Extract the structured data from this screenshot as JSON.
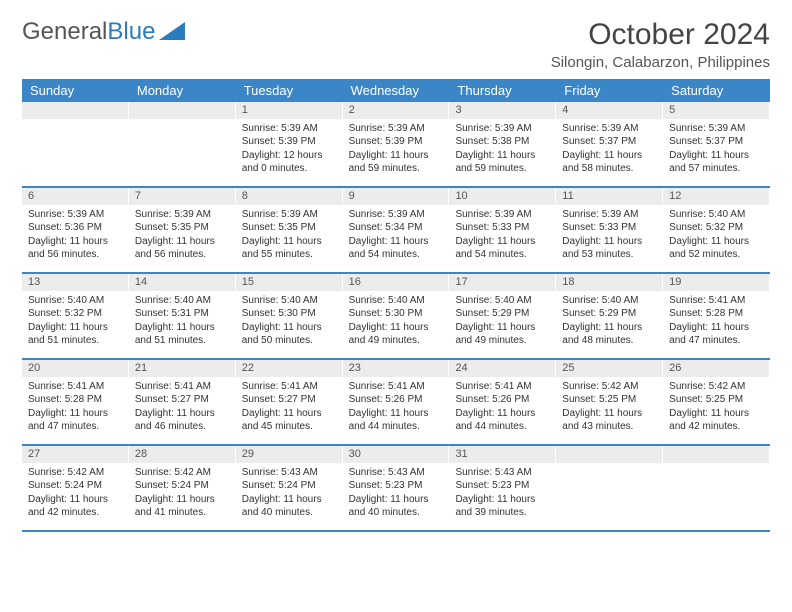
{
  "brand": {
    "a": "General",
    "b": "Blue"
  },
  "title": "October 2024",
  "subtitle": "Silongin, Calabarzon, Philippines",
  "colors": {
    "header_bg": "#3b86c6",
    "band_bg": "#ececec",
    "rule": "#3b86c6",
    "text": "#333333",
    "brand_blue": "#2b7bbf"
  },
  "day_names": [
    "Sunday",
    "Monday",
    "Tuesday",
    "Wednesday",
    "Thursday",
    "Friday",
    "Saturday"
  ],
  "weeks": [
    [
      null,
      null,
      {
        "n": "1",
        "sr": "Sunrise: 5:39 AM",
        "ss": "Sunset: 5:39 PM",
        "dl": "Daylight: 12 hours and 0 minutes."
      },
      {
        "n": "2",
        "sr": "Sunrise: 5:39 AM",
        "ss": "Sunset: 5:39 PM",
        "dl": "Daylight: 11 hours and 59 minutes."
      },
      {
        "n": "3",
        "sr": "Sunrise: 5:39 AM",
        "ss": "Sunset: 5:38 PM",
        "dl": "Daylight: 11 hours and 59 minutes."
      },
      {
        "n": "4",
        "sr": "Sunrise: 5:39 AM",
        "ss": "Sunset: 5:37 PM",
        "dl": "Daylight: 11 hours and 58 minutes."
      },
      {
        "n": "5",
        "sr": "Sunrise: 5:39 AM",
        "ss": "Sunset: 5:37 PM",
        "dl": "Daylight: 11 hours and 57 minutes."
      }
    ],
    [
      {
        "n": "6",
        "sr": "Sunrise: 5:39 AM",
        "ss": "Sunset: 5:36 PM",
        "dl": "Daylight: 11 hours and 56 minutes."
      },
      {
        "n": "7",
        "sr": "Sunrise: 5:39 AM",
        "ss": "Sunset: 5:35 PM",
        "dl": "Daylight: 11 hours and 56 minutes."
      },
      {
        "n": "8",
        "sr": "Sunrise: 5:39 AM",
        "ss": "Sunset: 5:35 PM",
        "dl": "Daylight: 11 hours and 55 minutes."
      },
      {
        "n": "9",
        "sr": "Sunrise: 5:39 AM",
        "ss": "Sunset: 5:34 PM",
        "dl": "Daylight: 11 hours and 54 minutes."
      },
      {
        "n": "10",
        "sr": "Sunrise: 5:39 AM",
        "ss": "Sunset: 5:33 PM",
        "dl": "Daylight: 11 hours and 54 minutes."
      },
      {
        "n": "11",
        "sr": "Sunrise: 5:39 AM",
        "ss": "Sunset: 5:33 PM",
        "dl": "Daylight: 11 hours and 53 minutes."
      },
      {
        "n": "12",
        "sr": "Sunrise: 5:40 AM",
        "ss": "Sunset: 5:32 PM",
        "dl": "Daylight: 11 hours and 52 minutes."
      }
    ],
    [
      {
        "n": "13",
        "sr": "Sunrise: 5:40 AM",
        "ss": "Sunset: 5:32 PM",
        "dl": "Daylight: 11 hours and 51 minutes."
      },
      {
        "n": "14",
        "sr": "Sunrise: 5:40 AM",
        "ss": "Sunset: 5:31 PM",
        "dl": "Daylight: 11 hours and 51 minutes."
      },
      {
        "n": "15",
        "sr": "Sunrise: 5:40 AM",
        "ss": "Sunset: 5:30 PM",
        "dl": "Daylight: 11 hours and 50 minutes."
      },
      {
        "n": "16",
        "sr": "Sunrise: 5:40 AM",
        "ss": "Sunset: 5:30 PM",
        "dl": "Daylight: 11 hours and 49 minutes."
      },
      {
        "n": "17",
        "sr": "Sunrise: 5:40 AM",
        "ss": "Sunset: 5:29 PM",
        "dl": "Daylight: 11 hours and 49 minutes."
      },
      {
        "n": "18",
        "sr": "Sunrise: 5:40 AM",
        "ss": "Sunset: 5:29 PM",
        "dl": "Daylight: 11 hours and 48 minutes."
      },
      {
        "n": "19",
        "sr": "Sunrise: 5:41 AM",
        "ss": "Sunset: 5:28 PM",
        "dl": "Daylight: 11 hours and 47 minutes."
      }
    ],
    [
      {
        "n": "20",
        "sr": "Sunrise: 5:41 AM",
        "ss": "Sunset: 5:28 PM",
        "dl": "Daylight: 11 hours and 47 minutes."
      },
      {
        "n": "21",
        "sr": "Sunrise: 5:41 AM",
        "ss": "Sunset: 5:27 PM",
        "dl": "Daylight: 11 hours and 46 minutes."
      },
      {
        "n": "22",
        "sr": "Sunrise: 5:41 AM",
        "ss": "Sunset: 5:27 PM",
        "dl": "Daylight: 11 hours and 45 minutes."
      },
      {
        "n": "23",
        "sr": "Sunrise: 5:41 AM",
        "ss": "Sunset: 5:26 PM",
        "dl": "Daylight: 11 hours and 44 minutes."
      },
      {
        "n": "24",
        "sr": "Sunrise: 5:41 AM",
        "ss": "Sunset: 5:26 PM",
        "dl": "Daylight: 11 hours and 44 minutes."
      },
      {
        "n": "25",
        "sr": "Sunrise: 5:42 AM",
        "ss": "Sunset: 5:25 PM",
        "dl": "Daylight: 11 hours and 43 minutes."
      },
      {
        "n": "26",
        "sr": "Sunrise: 5:42 AM",
        "ss": "Sunset: 5:25 PM",
        "dl": "Daylight: 11 hours and 42 minutes."
      }
    ],
    [
      {
        "n": "27",
        "sr": "Sunrise: 5:42 AM",
        "ss": "Sunset: 5:24 PM",
        "dl": "Daylight: 11 hours and 42 minutes."
      },
      {
        "n": "28",
        "sr": "Sunrise: 5:42 AM",
        "ss": "Sunset: 5:24 PM",
        "dl": "Daylight: 11 hours and 41 minutes."
      },
      {
        "n": "29",
        "sr": "Sunrise: 5:43 AM",
        "ss": "Sunset: 5:24 PM",
        "dl": "Daylight: 11 hours and 40 minutes."
      },
      {
        "n": "30",
        "sr": "Sunrise: 5:43 AM",
        "ss": "Sunset: 5:23 PM",
        "dl": "Daylight: 11 hours and 40 minutes."
      },
      {
        "n": "31",
        "sr": "Sunrise: 5:43 AM",
        "ss": "Sunset: 5:23 PM",
        "dl": "Daylight: 11 hours and 39 minutes."
      },
      null,
      null
    ]
  ]
}
